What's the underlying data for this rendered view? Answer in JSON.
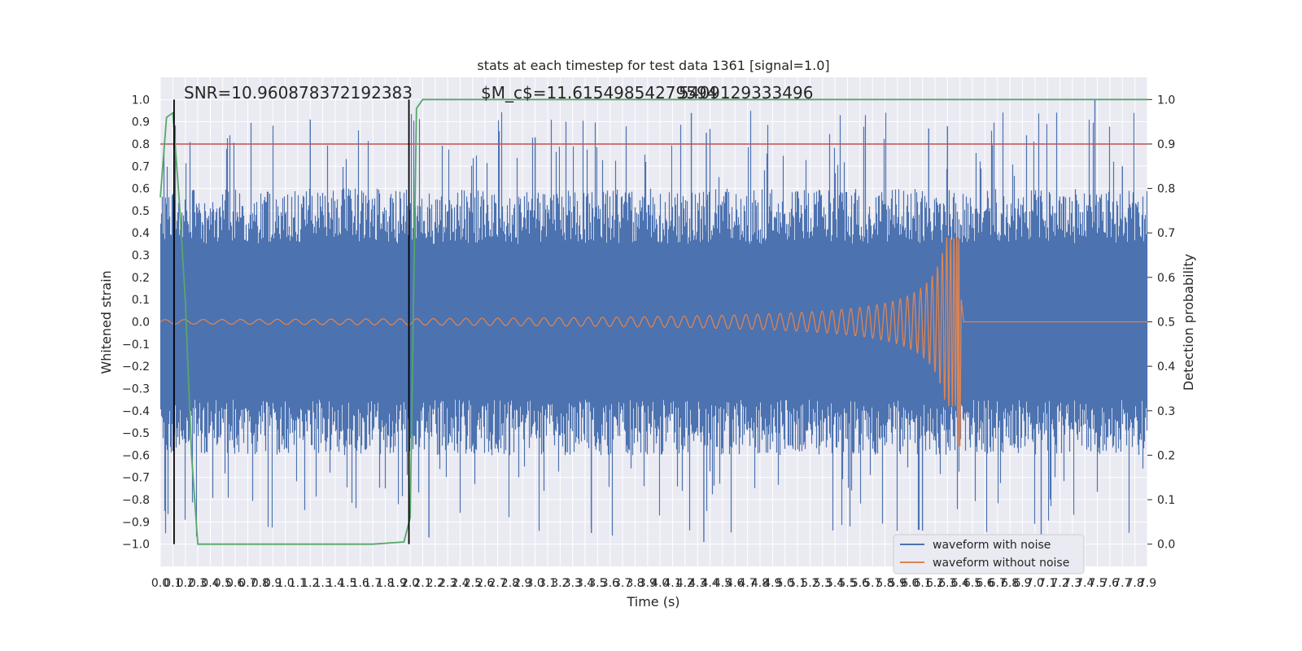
{
  "chart_data": {
    "type": "line",
    "title": "stats at each timestep for test data 1361 [signal=1.0]",
    "xlabel": "Time (s)",
    "ylabel_left": "Whitened strain",
    "ylabel_right": "Detection probability",
    "xlim": [
      0.0,
      7.9
    ],
    "ylim_left": [
      -1.1,
      1.1
    ],
    "ylim_right": [
      -0.05,
      1.05
    ],
    "x_ticks": [
      "0.0",
      "0.1",
      "0.2",
      "0.3",
      "0.4",
      "0.5",
      "0.6",
      "0.7",
      "0.8",
      "0.9",
      "1.0",
      "1.1",
      "1.2",
      "1.3",
      "1.4",
      "1.5",
      "1.6",
      "1.7",
      "1.8",
      "1.9",
      "2.0",
      "2.1",
      "2.2",
      "2.3",
      "2.4",
      "2.5",
      "2.6",
      "2.7",
      "2.8",
      "2.9",
      "3.0",
      "3.1",
      "3.2",
      "3.3",
      "3.4",
      "3.5",
      "3.6",
      "3.7",
      "3.8",
      "3.9",
      "4.0",
      "4.1",
      "4.2",
      "4.3",
      "4.4",
      "4.5",
      "4.6",
      "4.7",
      "4.8",
      "4.9",
      "5.0",
      "5.1",
      "5.2",
      "5.3",
      "5.4",
      "5.5",
      "5.6",
      "5.7",
      "5.8",
      "5.9",
      "6.0",
      "6.1",
      "6.2",
      "6.3",
      "6.4",
      "6.5",
      "6.6",
      "6.7",
      "6.8",
      "6.9",
      "7.0",
      "7.1",
      "7.2",
      "7.3",
      "7.4",
      "7.5",
      "7.6",
      "7.7",
      "7.8",
      "7.9"
    ],
    "y_ticks_left": [
      "1.0",
      "0.9",
      "0.8",
      "0.7",
      "0.6",
      "0.5",
      "0.4",
      "0.3",
      "0.2",
      "0.1",
      "0.0",
      "−0.1",
      "−0.2",
      "−0.3",
      "−0.4",
      "−0.5",
      "−0.6",
      "−0.7",
      "−0.8",
      "−0.9",
      "−1.0"
    ],
    "y_ticks_right": [
      "1.0",
      "0.9",
      "0.8",
      "0.7",
      "0.6",
      "0.5",
      "0.4",
      "0.3",
      "0.2",
      "0.1",
      "0.0"
    ],
    "annotations": {
      "snr": "SNR=10.960878372192383",
      "mc_a": "$M_c$=11.61549854279594",
      "mc_b": "5409129333496"
    },
    "grid": true,
    "legend_placement": "bottom-right",
    "colors": {
      "background": "#eaeaf2",
      "noise": "#4c72b0",
      "clean": "#dd8452",
      "probability": "#55a868",
      "threshold": "#c44e52",
      "marker": "#000000"
    },
    "series": [
      {
        "name": "waveform with noise",
        "axis": "left",
        "description_values": {
          "approx_abs_peak": 1.0,
          "approx_range": [
            -1.0,
            1.0
          ]
        }
      },
      {
        "name": "waveform without noise",
        "axis": "left",
        "merger_time": 6.4,
        "peak_positive": 0.38,
        "peak_negative": -0.56,
        "early_amplitude": 0.01
      },
      {
        "axis": "right",
        "x": [
          0.0,
          0.05,
          0.1,
          0.15,
          0.2,
          0.25,
          0.3,
          0.4,
          1.0,
          1.4,
          1.7,
          1.95,
          2.0,
          2.05,
          2.1,
          7.9
        ],
        "values": [
          0.78,
          0.96,
          0.97,
          0.78,
          0.55,
          0.2,
          0.0,
          0.0,
          0.0,
          0.0,
          0.0,
          0.005,
          0.06,
          0.98,
          1.0,
          1.0
        ]
      }
    ],
    "threshold_value": 0.9,
    "vertical_markers_x": [
      0.11,
      1.99
    ]
  }
}
